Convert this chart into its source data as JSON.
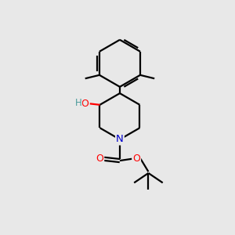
{
  "background_color": "#e8e8e8",
  "bond_color": "#000000",
  "atom_colors": {
    "O": "#ff0000",
    "N": "#0000cc",
    "H": "#4a9a9a",
    "C": "#000000"
  },
  "figsize": [
    3.0,
    3.0
  ],
  "dpi": 100
}
